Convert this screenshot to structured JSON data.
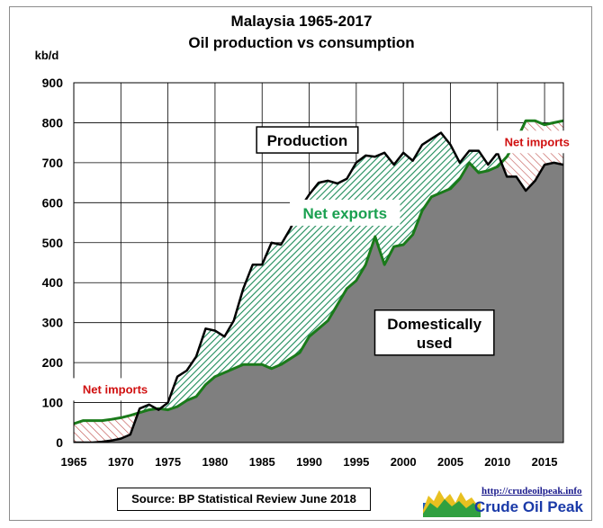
{
  "chart_data": {
    "type": "area",
    "title": "Malaysia  1965-2017",
    "subtitle": "Oil production vs consumption",
    "ylabel": "kb/d",
    "xlim": [
      1965,
      2017
    ],
    "ylim": [
      0,
      900
    ],
    "x_ticks": [
      1965,
      1970,
      1975,
      1980,
      1985,
      1990,
      1995,
      2000,
      2005,
      2010,
      2015
    ],
    "y_ticks": [
      0,
      100,
      200,
      300,
      400,
      500,
      600,
      700,
      800,
      900
    ],
    "grid": true,
    "x": [
      1965,
      1966,
      1967,
      1968,
      1969,
      1970,
      1971,
      1972,
      1973,
      1974,
      1975,
      1976,
      1977,
      1978,
      1979,
      1980,
      1981,
      1982,
      1983,
      1984,
      1985,
      1986,
      1987,
      1988,
      1989,
      1990,
      1991,
      1992,
      1993,
      1994,
      1995,
      1996,
      1997,
      1998,
      1999,
      2000,
      2001,
      2002,
      2003,
      2004,
      2005,
      2006,
      2007,
      2008,
      2009,
      2010,
      2011,
      2012,
      2013,
      2014,
      2015,
      2016,
      2017
    ],
    "series": [
      {
        "name": "Production",
        "values": [
          0,
          0,
          0,
          2,
          5,
          10,
          20,
          85,
          95,
          82,
          100,
          165,
          180,
          215,
          285,
          280,
          265,
          305,
          385,
          445,
          445,
          500,
          495,
          535,
          585,
          620,
          650,
          655,
          648,
          660,
          700,
          718,
          715,
          725,
          695,
          725,
          705,
          745,
          760,
          775,
          745,
          700,
          730,
          730,
          695,
          725,
          665,
          665,
          630,
          655,
          695,
          700,
          695
        ]
      },
      {
        "name": "Domestically used",
        "values": [
          47,
          55,
          55,
          55,
          58,
          62,
          68,
          75,
          82,
          85,
          82,
          90,
          105,
          115,
          145,
          165,
          175,
          185,
          195,
          195,
          195,
          185,
          195,
          210,
          225,
          265,
          285,
          305,
          345,
          385,
          405,
          445,
          515,
          445,
          490,
          495,
          520,
          580,
          615,
          625,
          635,
          660,
          700,
          675,
          680,
          690,
          715,
          755,
          805,
          805,
          795,
          800,
          805
        ]
      }
    ],
    "annotations": {
      "production_label": "Production",
      "net_exports_label": "Net exports",
      "domestic_label_line1": "Domestically",
      "domestic_label_line2": "used",
      "net_imports_early": "Net imports",
      "net_imports_late": "Net imports"
    },
    "colors": {
      "production_line": "#000000",
      "consumption_line": "#1a7a1a",
      "domestic_fill": "#7f7f7f",
      "exports_hatch": "#1e8c5a",
      "imports_hatch": "#c0504d",
      "net_exports_text": "#1aa050",
      "net_imports_text": "#d01010"
    }
  },
  "source": "Source: BP Statistical Review  June 2018",
  "logo": {
    "url_text": "http://crudeoilpeak.info",
    "name": "Crude Oil Peak"
  }
}
